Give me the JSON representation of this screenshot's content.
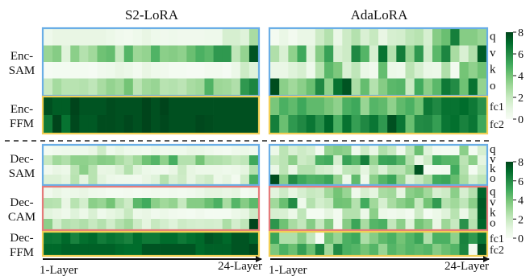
{
  "chart_data": {
    "type": "heatmap",
    "colormap": "Greens",
    "vmin": 0,
    "vmax": 8,
    "colorbar_ticks": [
      "8",
      "6",
      "4",
      "2",
      "0"
    ],
    "column_titles": [
      "S2-LoRA",
      "AdaLoRA"
    ],
    "x_start_label": "1-Layer",
    "x_end_label": "24-Layer",
    "n_layers": 24,
    "frame_colors": {
      "attention": "#6aaee6",
      "cross": "#e57a7a",
      "ffn": "#f2cf55"
    },
    "panels": [
      {
        "label_lines": [
          "Enc-",
          "SAM"
        ],
        "group": "encoder",
        "frame": "attention",
        "row_labels": [
          "q",
          "v",
          "k",
          "o"
        ],
        "s2_lora": [
          [
            0.5,
            0.8,
            0.8,
            0.8,
            0.8,
            0.8,
            0.8,
            0.6,
            0.4,
            0.3,
            0.5,
            0.8,
            0.5,
            0.4,
            0.5,
            0.4,
            0.4,
            0.4,
            0.5,
            0.5,
            1.5,
            1.5,
            1.2,
            2.8
          ],
          [
            3.2,
            3.6,
            1.2,
            3.5,
            2.5,
            3.0,
            4.1,
            4.3,
            2.0,
            4.6,
            3.1,
            3.3,
            4.7,
            3.5,
            3.6,
            3.4,
            4.2,
            4.8,
            4.5,
            5.6,
            5.6,
            2.2,
            3.3,
            7.6
          ],
          [
            0.1,
            0.2,
            0.2,
            0.2,
            0.2,
            0.1,
            0.4,
            0.5,
            0.8,
            0.6,
            0.3,
            0.8,
            0.5,
            0.4,
            0.2,
            0.2,
            0.1,
            0.1,
            0.3,
            0.3,
            0.1,
            0.6,
            1.8,
            1.2
          ],
          [
            2.0,
            2.9,
            2.4,
            2.4,
            2.5,
            2.2,
            2.8,
            3.3,
            3.0,
            4.0,
            2.3,
            3.0,
            3.2,
            2.4,
            2.5,
            2.3,
            2.8,
            3.0,
            4.7,
            3.1,
            3.0,
            2.6,
            5.6,
            6.2
          ]
        ],
        "adalora": [
          [
            0.2,
            0.7,
            0.3,
            0.7,
            0.7,
            1.8,
            2.5,
            0.7,
            1.8,
            2.5,
            1.4,
            2.0,
            0.8,
            1.5,
            1.6,
            2.2,
            2.4,
            1.5,
            3.6,
            4.2,
            6.4,
            3.6,
            3.6,
            3.2
          ],
          [
            2.6,
            1.4,
            3.4,
            5.1,
            1.2,
            3.6,
            5.3,
            1.4,
            1.8,
            6.1,
            4.6,
            1.5,
            6.8,
            2.5,
            6.5,
            3.2,
            5.6,
            1.7,
            4.5,
            6.2,
            2.8,
            1.4,
            2.6,
            7.4
          ],
          [
            0.7,
            0.7,
            1.2,
            1.5,
            0.5,
            2.4,
            4.5,
            3.8,
            1.4,
            2.2,
            0.7,
            0.4,
            4.3,
            0.6,
            0.5,
            2.3,
            1.5,
            0.7,
            0.6,
            2.6,
            0.3,
            4.0,
            3.4,
            4.1
          ],
          [
            7.8,
            3.5,
            3.0,
            3.5,
            4.2,
            6.1,
            3.4,
            6.8,
            7.6,
            2.7,
            4.3,
            2.5,
            3.6,
            4.5,
            4.6,
            1.9,
            5.0,
            3.5,
            4.5,
            6.6,
            6.0,
            4.1,
            6.8,
            3.3
          ]
        ]
      },
      {
        "label_lines": [
          "Enc-",
          "FFM"
        ],
        "group": "encoder",
        "frame": "ffn",
        "row_labels": [
          "fc1",
          "fc2"
        ],
        "s2_lora": [
          [
            7.7,
            7.4,
            7.4,
            8.0,
            7.6,
            7.6,
            7.6,
            7.8,
            7.7,
            7.7,
            7.7,
            8.0,
            7.7,
            8.0,
            7.7,
            7.7,
            7.7,
            7.7,
            7.7,
            7.7,
            7.7,
            7.7,
            7.7,
            7.7
          ],
          [
            6.6,
            8.0,
            6.8,
            7.9,
            7.5,
            7.5,
            7.8,
            7.8,
            7.7,
            7.9,
            7.7,
            8.0,
            7.7,
            7.9,
            7.7,
            7.7,
            7.7,
            7.9,
            7.8,
            7.7,
            7.7,
            7.7,
            7.7,
            7.7
          ]
        ],
        "adalora": [
          [
            3.9,
            4.8,
            4.4,
            5.1,
            4.4,
            4.4,
            3.9,
            3.4,
            4.8,
            5.1,
            3.2,
            4.6,
            4.4,
            3.4,
            4.4,
            4.8,
            4.0,
            6.6,
            6.1,
            6.8,
            6.8,
            7.0,
            6.6,
            5.8
          ],
          [
            6.4,
            4.2,
            5.6,
            6.1,
            6.7,
            5.8,
            7.1,
            4.8,
            6.8,
            5.4,
            6.1,
            6.7,
            5.6,
            7.7,
            6.7,
            4.2,
            6.0,
            6.1,
            5.4,
            6.7,
            6.9,
            6.3,
            6.7,
            5.1
          ]
        ]
      },
      {
        "label_lines": [
          "Dec-",
          "SAM"
        ],
        "group": "decoder",
        "frame": "attention",
        "row_labels": [
          "q",
          "v",
          "k",
          "o"
        ],
        "s2_lora": [
          [
            0.2,
            0.4,
            0.5,
            0.5,
            0.5,
            0.8,
            1.8,
            0.5,
            0.9,
            0.5,
            0.4,
            0.3,
            0.6,
            0.4,
            0.5,
            0.5,
            0.8,
            0.7,
            0.5,
            0.3,
            0.2,
            0.5,
            0.6,
            0.4
          ],
          [
            2.0,
            3.0,
            2.6,
            3.4,
            3.4,
            3.2,
            3.6,
            3.5,
            2.8,
            2.3,
            3.0,
            4.1,
            4.6,
            3.4,
            4.9,
            2.5,
            2.5,
            4.0,
            2.7,
            2.6,
            2.4,
            2.0,
            2.2,
            5.1
          ],
          [
            0.4,
            0.8,
            0.6,
            2.3,
            3.5,
            2.4,
            0.8,
            0.9,
            1.4,
            2.5,
            1.2,
            0.6,
            0.5,
            0.4,
            0.8,
            1.9,
            0.9,
            0.6,
            0.6,
            0.6,
            0.5,
            0.6,
            1.0,
            2.5
          ],
          [
            1.3,
            1.3,
            1.0,
            2.4,
            1.0,
            2.4,
            1.1,
            0.6,
            0.5,
            0.5,
            0.4,
            0.8,
            1.2,
            2.5,
            1.4,
            1.8,
            0.9,
            1.5,
            1.8,
            0.6,
            1.0,
            0.3,
            1.7,
            4.9
          ]
        ],
        "adalora": [
          [
            0.6,
            2.3,
            1.4,
            1.8,
            1.5,
            0.3,
            3.3,
            3.6,
            3.4,
            0.5,
            1.8,
            0.7,
            2.6,
            2.0,
            0.4,
            2.2,
            4.2,
            1.2,
            0.3,
            0.2,
            0.2,
            3.5,
            0.2,
            1.5
          ],
          [
            1.9,
            2.3,
            3.5,
            1.8,
            2.1,
            4.8,
            5.0,
            1.5,
            5.3,
            4.6,
            6.4,
            3.2,
            5.2,
            5.3,
            4.6,
            2.6,
            0.8,
            1.8,
            5.0,
            4.6,
            4.5,
            2.3,
            3.5,
            1.0
          ],
          [
            0.7,
            2.3,
            0.8,
            2.5,
            2.5,
            1.7,
            1.5,
            0.8,
            2.2,
            2.3,
            1.0,
            2.3,
            1.3,
            2.4,
            2.3,
            3.2,
            7.6,
            0.2,
            0.3,
            0.4,
            5.0,
            2.5,
            0.2,
            1.5
          ],
          [
            7.8,
            3.5,
            6.0,
            5.1,
            4.7,
            4.8,
            5.2,
            3.3,
            0.6,
            4.4,
            0.5,
            3.5,
            4.6,
            5.2,
            3.3,
            1.3,
            2.0,
            2.8,
            5.0,
            5.2,
            4.3,
            2.8,
            1.6,
            2.2
          ]
        ]
      },
      {
        "label_lines": [
          "Dec-",
          "CAM"
        ],
        "group": "decoder",
        "frame": "cross",
        "row_labels": [
          "q",
          "v",
          "k",
          "o"
        ],
        "s2_lora": [
          [
            0.4,
            0.8,
            0.5,
            0.6,
            0.8,
            0.5,
            0.4,
            0.2,
            0.2,
            0.3,
            0.2,
            0.3,
            0.4,
            0.3,
            0.4,
            0.3,
            0.4,
            0.6,
            1.0,
            1.0,
            0.8,
            1.0,
            0.2,
            0.4
          ],
          [
            2.5,
            2.4,
            0.8,
            2.4,
            1.6,
            3.5,
            3.2,
            4.0,
            2.5,
            1.8,
            4.5,
            5.0,
            3.5,
            3.0,
            3.3,
            2.0,
            3.6,
            3.6,
            4.2,
            4.8,
            2.8,
            4.6,
            3.6,
            4.5
          ],
          [
            1.1,
            0.8,
            0.5,
            1.2,
            0.6,
            1.4,
            0.5,
            0.9,
            1.2,
            2.0,
            0.6,
            0.8,
            0.4,
            0.6,
            0.4,
            0.3,
            0.2,
            0.4,
            0.2,
            0.2,
            0.2,
            0.6,
            0.9,
            1.8
          ],
          [
            3.5,
            1.6,
            2.5,
            2.3,
            2.6,
            2.0,
            2.5,
            1.7,
            2.5,
            3.0,
            1.8,
            1.0,
            2.0,
            1.6,
            1.2,
            1.8,
            1.6,
            1.5,
            1.6,
            1.5,
            2.7,
            1.6,
            2.2,
            8.0
          ]
        ],
        "adalora": [
          [
            1.1,
            1.8,
            0.9,
            1.5,
            2.0,
            1.8,
            3.0,
            4.0,
            3.2,
            0.5,
            1.5,
            1.0,
            2.8,
            3.0,
            1.0,
            3.5,
            3.8,
            3.0,
            1.5,
            1.8,
            3.5,
            1.5,
            2.5,
            7.2
          ],
          [
            3.0,
            4.2,
            6.0,
            0.5,
            2.5,
            1.6,
            2.0,
            4.1,
            4.0,
            2.5,
            5.0,
            3.0,
            1.5,
            2.8,
            3.5,
            4.0,
            2.0,
            4.0,
            5.5,
            2.5,
            3.0,
            2.2,
            3.5,
            7.5
          ],
          [
            1.5,
            1.4,
            0.6,
            2.2,
            0.2,
            0.2,
            1.0,
            0.3,
            2.5,
            2.5,
            0.6,
            3.5,
            0.6,
            0.4,
            0.6,
            0.3,
            1.8,
            0.2,
            0.6,
            1.2,
            2.4,
            0.6,
            2.2,
            7.4
          ],
          [
            5.7,
            4.1,
            2.8,
            2.1,
            3.6,
            2.0,
            3.7,
            0.4,
            3.6,
            5.2,
            2.8,
            4.6,
            4.8,
            2.1,
            3.5,
            1.2,
            4.0,
            3.4,
            0.8,
            3.1,
            2.0,
            5.8,
            2.4,
            7.2
          ]
        ]
      },
      {
        "label_lines": [
          "Dec-",
          "FFM"
        ],
        "group": "decoder",
        "frame": "ffn",
        "row_labels": [
          "fc1",
          "fc2"
        ],
        "s2_lora": [
          [
            6.7,
            6.6,
            7.1,
            6.3,
            6.9,
            7.1,
            6.5,
            6.8,
            6.6,
            6.3,
            7.0,
            6.6,
            6.6,
            7.0,
            7.0,
            6.6,
            6.9,
            7.1,
            7.6,
            7.4,
            7.1,
            7.6,
            7.6,
            7.2
          ],
          [
            7.1,
            7.1,
            7.3,
            7.3,
            7.3,
            7.3,
            7.3,
            7.3,
            7.1,
            7.0,
            7.0,
            7.6,
            7.6,
            7.6,
            7.6,
            7.6,
            7.6,
            7.1,
            7.3,
            7.3,
            7.3,
            7.6,
            7.6,
            7.9
          ]
        ],
        "adalora": [
          [
            5.2,
            2.6,
            2.6,
            3.6,
            2.2,
            0.1,
            4.1,
            3.2,
            4.8,
            5.1,
            2.7,
            3.6,
            4.4,
            4.8,
            4.0,
            4.6,
            5.2,
            2.6,
            4.8,
            4.8,
            3.4,
            6.3,
            5.6,
            6.8
          ],
          [
            3.8,
            4.8,
            4.2,
            5.4,
            4.2,
            6.2,
            3.0,
            6.0,
            4.8,
            4.6,
            4.0,
            4.6,
            3.2,
            4.6,
            4.2,
            4.6,
            4.4,
            4.6,
            3.6,
            4.2,
            4.6,
            6.2,
            0.3,
            7.8
          ]
        ]
      }
    ]
  }
}
